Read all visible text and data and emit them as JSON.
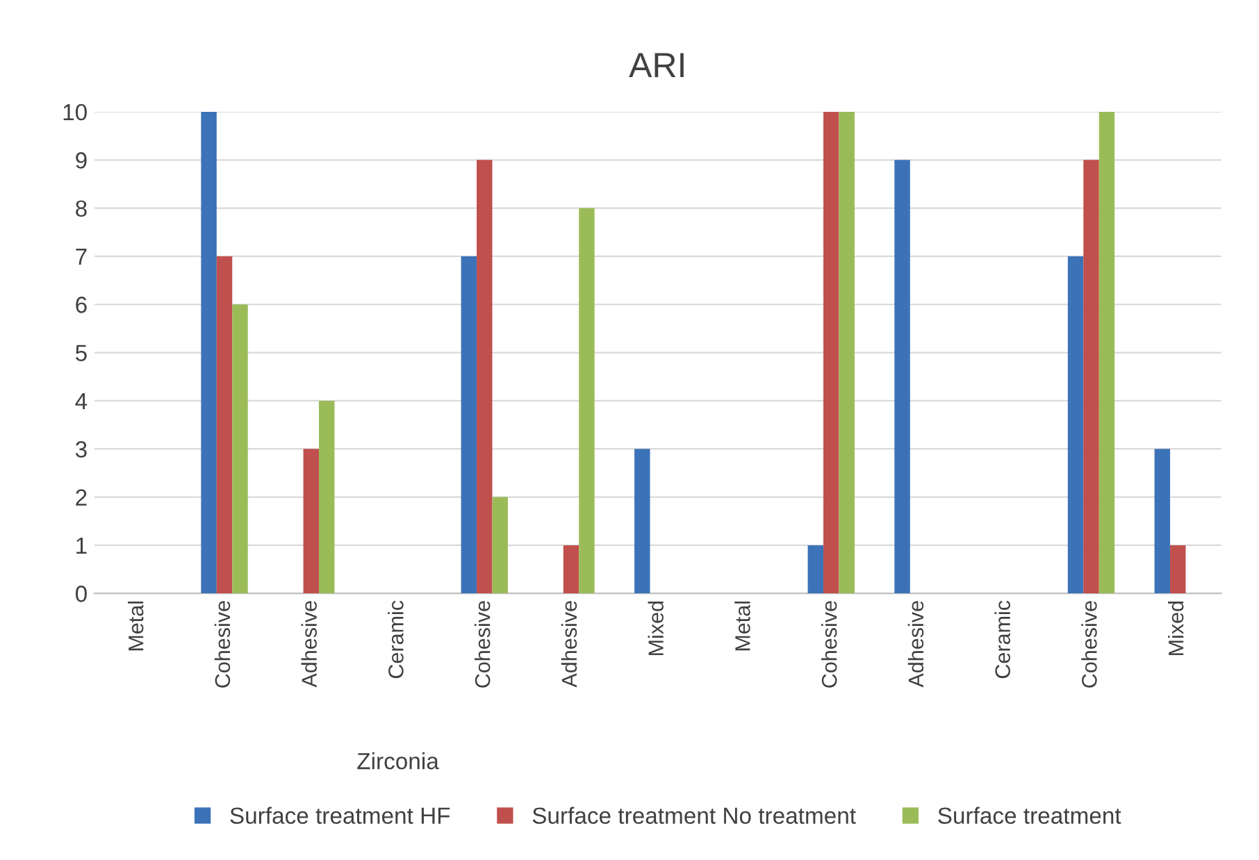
{
  "chart_data": {
    "type": "bar",
    "title": "ARI",
    "categories": [
      "Metal",
      "Cohesive",
      "Adhesive",
      "Ceramic",
      "Cohesive",
      "Adhesive",
      "Mixed",
      "Metal",
      "Cohesive",
      "Adhesive",
      "Ceramic",
      "Cohesive",
      "Mixed"
    ],
    "series": [
      {
        "name": "Surface treatment HF",
        "color": "#3c72b8",
        "values": [
          null,
          10,
          0,
          null,
          7,
          0,
          3,
          null,
          1,
          9,
          null,
          7,
          3
        ]
      },
      {
        "name": "Surface treatment No treatment",
        "color": "#c0504d",
        "values": [
          null,
          7,
          3,
          null,
          9,
          1,
          0,
          null,
          10,
          0,
          null,
          9,
          1
        ]
      },
      {
        "name": "Surface treatment",
        "color": "#9bbb59",
        "values": [
          null,
          6,
          4,
          null,
          2,
          8,
          0,
          null,
          10,
          0,
          null,
          10,
          0
        ]
      }
    ],
    "annotations": [
      "Zirconia"
    ],
    "ylim": [
      0,
      10
    ],
    "yticks": [
      0,
      1,
      2,
      3,
      4,
      5,
      6,
      7,
      8,
      9,
      10
    ],
    "grid": "y",
    "legend": "bottom"
  }
}
